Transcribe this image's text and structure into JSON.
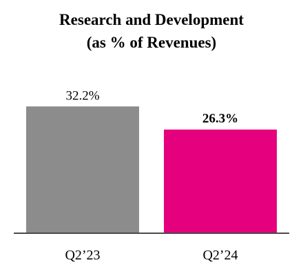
{
  "chart_data": {
    "type": "bar",
    "title": "Research and Development",
    "subtitle": "(as % of Revenues)",
    "categories": [
      "Q2’23",
      "Q2’24"
    ],
    "values": [
      32.2,
      26.3
    ],
    "value_labels": [
      "32.2%",
      "26.3%"
    ],
    "highlight_index": 1,
    "colors": [
      "#8c8c8c",
      "#e5007e"
    ],
    "axis_color": "#4a4a4a",
    "ylim": [
      0,
      40
    ],
    "grid": false,
    "legend": "none"
  }
}
